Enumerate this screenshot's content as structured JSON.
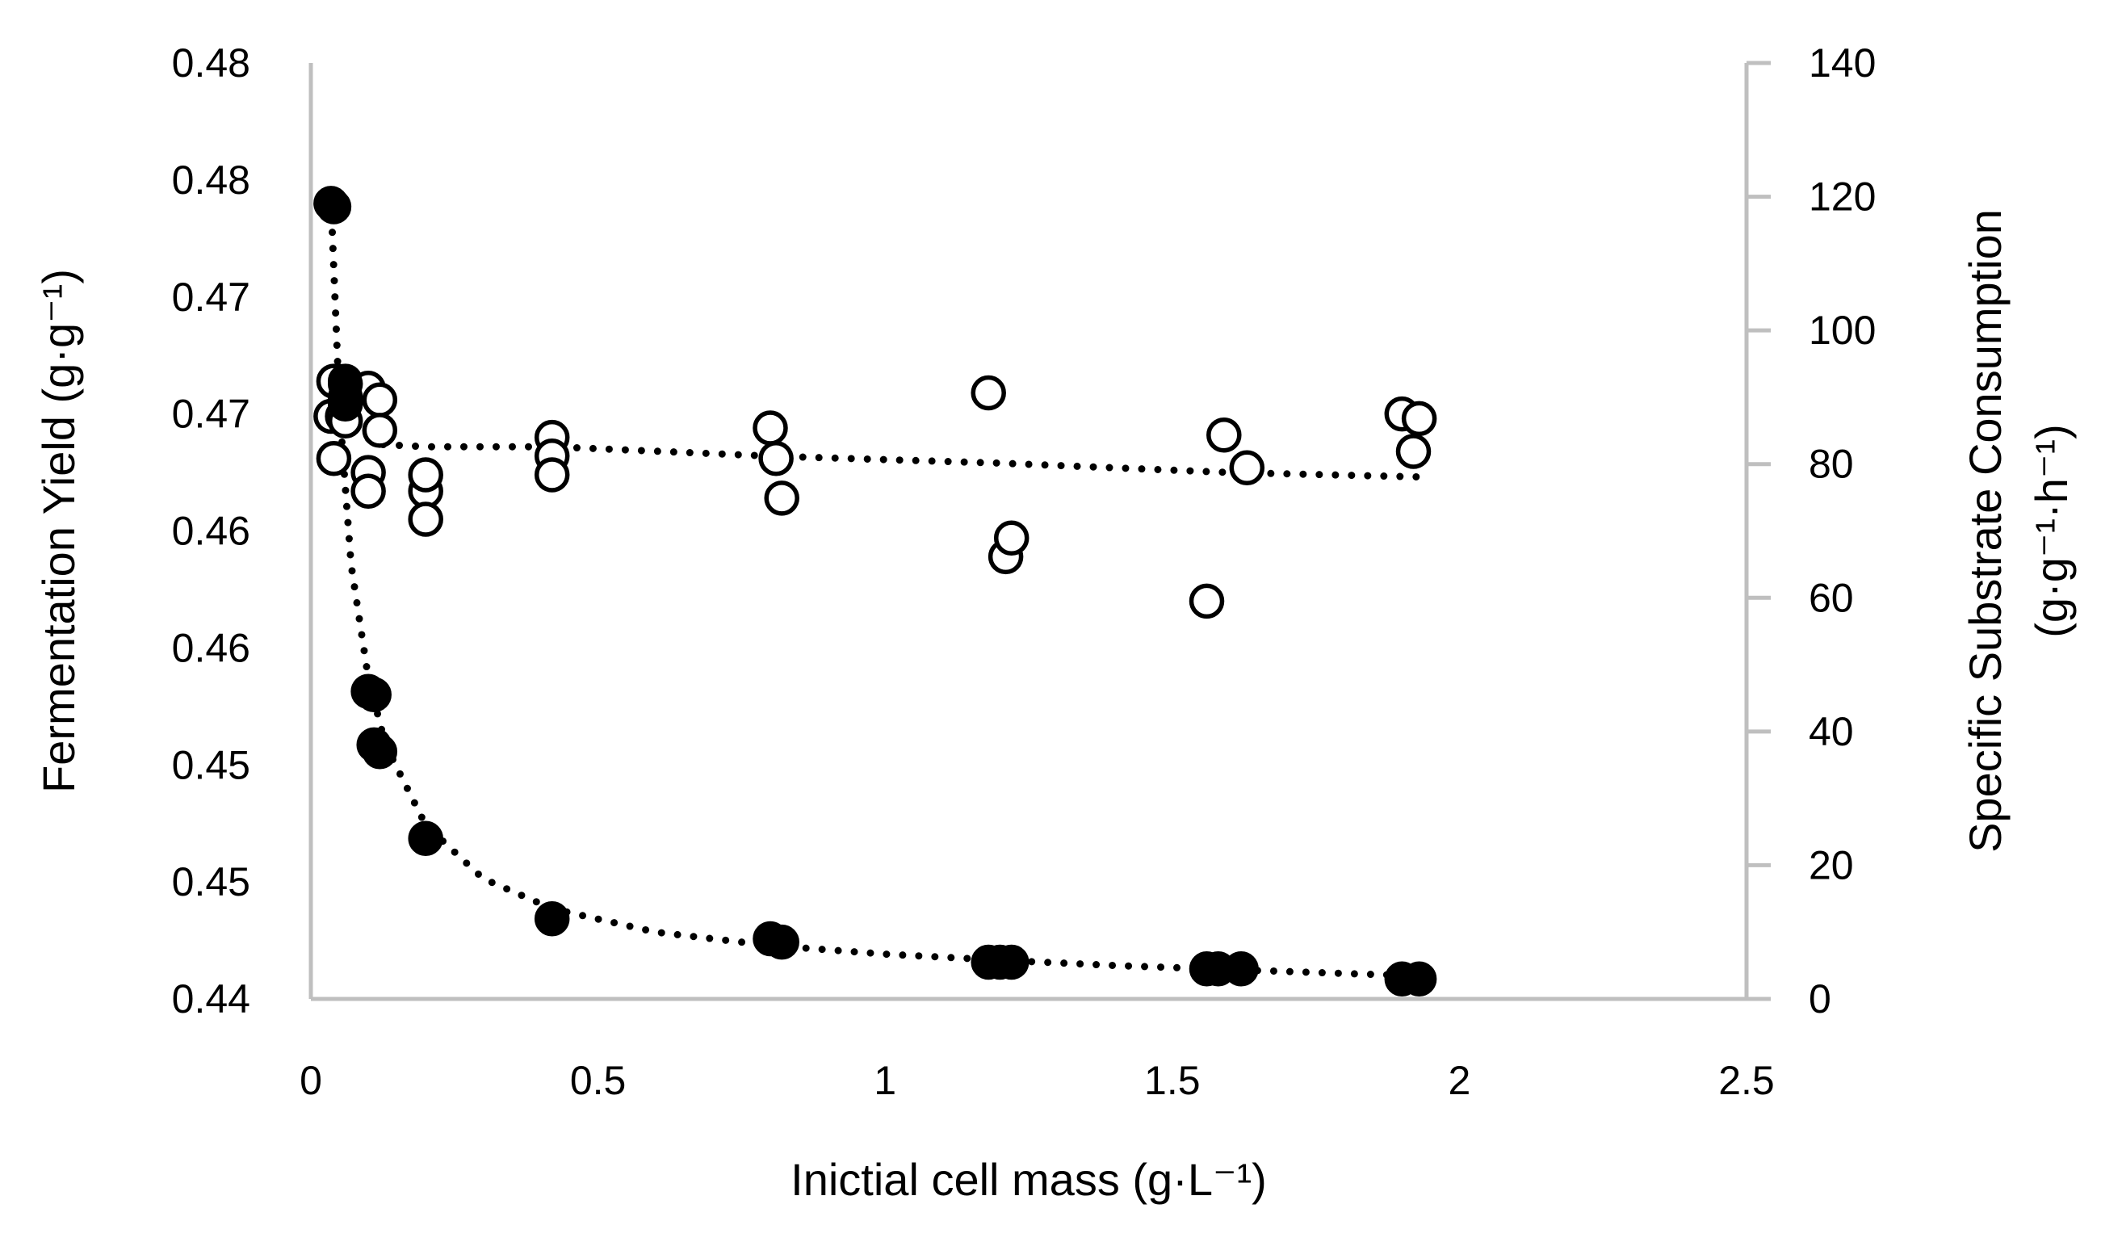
{
  "chart_data": {
    "type": "scatter",
    "xlabel": "Inictial cell mass (g·L⁻¹)",
    "ylabel_left": "Fermentation Yield (g·g⁻¹)",
    "ylabel_right_line1": "Specific Substrate Consumption",
    "ylabel_right_line2": "(g·g⁻¹·h⁻¹)",
    "xlim": [
      0,
      2.5
    ],
    "x_ticks": [
      0,
      0.5,
      1,
      1.5,
      2,
      2.5
    ],
    "x_tick_labels": [
      "0",
      "0.5",
      "1",
      "1.5",
      "2",
      "2.5"
    ],
    "ylim_left": [
      0.44,
      0.48
    ],
    "y_left_ticks": [
      0.44,
      0.445,
      0.45,
      0.455,
      0.46,
      0.465,
      0.47,
      0.475,
      0.48
    ],
    "y_left_tick_labels": [
      "0.44",
      "0.45",
      "0.45",
      "0.46",
      "0.46",
      "0.47",
      "0.47",
      "0.48",
      "0.48"
    ],
    "ylim_right": [
      0,
      140
    ],
    "y_right_ticks": [
      0,
      20,
      40,
      60,
      80,
      100,
      120,
      140
    ],
    "y_right_tick_labels": [
      "0",
      "20",
      "40",
      "60",
      "80",
      "100",
      "120",
      "140"
    ],
    "series": [
      {
        "name": "Fermentation Yield",
        "axis": "left",
        "marker": "open-circle",
        "points": [
          [
            0.04,
            0.4664
          ],
          [
            0.06,
            0.4664
          ],
          [
            0.035,
            0.4649
          ],
          [
            0.055,
            0.4649
          ],
          [
            0.04,
            0.4631
          ],
          [
            0.06,
            0.4647
          ],
          [
            0.1,
            0.4661
          ],
          [
            0.12,
            0.4656
          ],
          [
            0.12,
            0.4643
          ],
          [
            0.1,
            0.4625
          ],
          [
            0.1,
            0.4617
          ],
          [
            0.2,
            0.4617
          ],
          [
            0.2,
            0.4624
          ],
          [
            0.2,
            0.4605
          ],
          [
            0.42,
            0.464
          ],
          [
            0.42,
            0.4632
          ],
          [
            0.42,
            0.4624
          ],
          [
            0.8,
            0.4644
          ],
          [
            0.81,
            0.4631
          ],
          [
            0.82,
            0.4614
          ],
          [
            1.18,
            0.4659
          ],
          [
            1.21,
            0.4589
          ],
          [
            1.22,
            0.4597
          ],
          [
            1.56,
            0.457
          ],
          [
            1.59,
            0.4641
          ],
          [
            1.63,
            0.4627
          ],
          [
            1.9,
            0.465
          ],
          [
            1.93,
            0.4648
          ],
          [
            1.92,
            0.4634
          ]
        ],
        "trendline": [
          [
            0.05,
            0.467
          ],
          [
            0.08,
            0.4642
          ],
          [
            0.12,
            0.4637
          ],
          [
            0.2,
            0.4636
          ],
          [
            0.42,
            0.4636
          ],
          [
            0.8,
            0.4632
          ],
          [
            1.2,
            0.4629
          ],
          [
            1.6,
            0.4625
          ],
          [
            1.95,
            0.4623
          ]
        ]
      },
      {
        "name": "Specific Substrate Consumption",
        "axis": "right",
        "marker": "filled-circle",
        "points": [
          [
            0.035,
            119
          ],
          [
            0.04,
            118.5
          ],
          [
            0.06,
            92
          ],
          [
            0.06,
            90
          ],
          [
            0.06,
            89
          ],
          [
            0.1,
            46
          ],
          [
            0.11,
            45.5
          ],
          [
            0.11,
            38
          ],
          [
            0.12,
            37
          ],
          [
            0.2,
            24
          ],
          [
            0.42,
            12
          ],
          [
            0.8,
            9
          ],
          [
            0.82,
            8.5
          ],
          [
            1.18,
            5.5
          ],
          [
            1.2,
            5.5
          ],
          [
            1.22,
            5.5
          ],
          [
            1.56,
            4.5
          ],
          [
            1.58,
            4.5
          ],
          [
            1.62,
            4.5
          ],
          [
            1.9,
            3
          ],
          [
            1.93,
            3
          ]
        ],
        "trendline": [
          [
            0.035,
            119.5
          ],
          [
            0.05,
            88
          ],
          [
            0.07,
            65
          ],
          [
            0.1,
            48
          ],
          [
            0.13,
            38
          ],
          [
            0.2,
            26
          ],
          [
            0.3,
            18
          ],
          [
            0.42,
            13.5
          ],
          [
            0.6,
            10
          ],
          [
            0.8,
            8
          ],
          [
            1.0,
            6.7
          ],
          [
            1.2,
            5.8
          ],
          [
            1.4,
            5.0
          ],
          [
            1.6,
            4.4
          ],
          [
            1.8,
            3.8
          ],
          [
            1.95,
            3.4
          ]
        ]
      }
    ]
  }
}
